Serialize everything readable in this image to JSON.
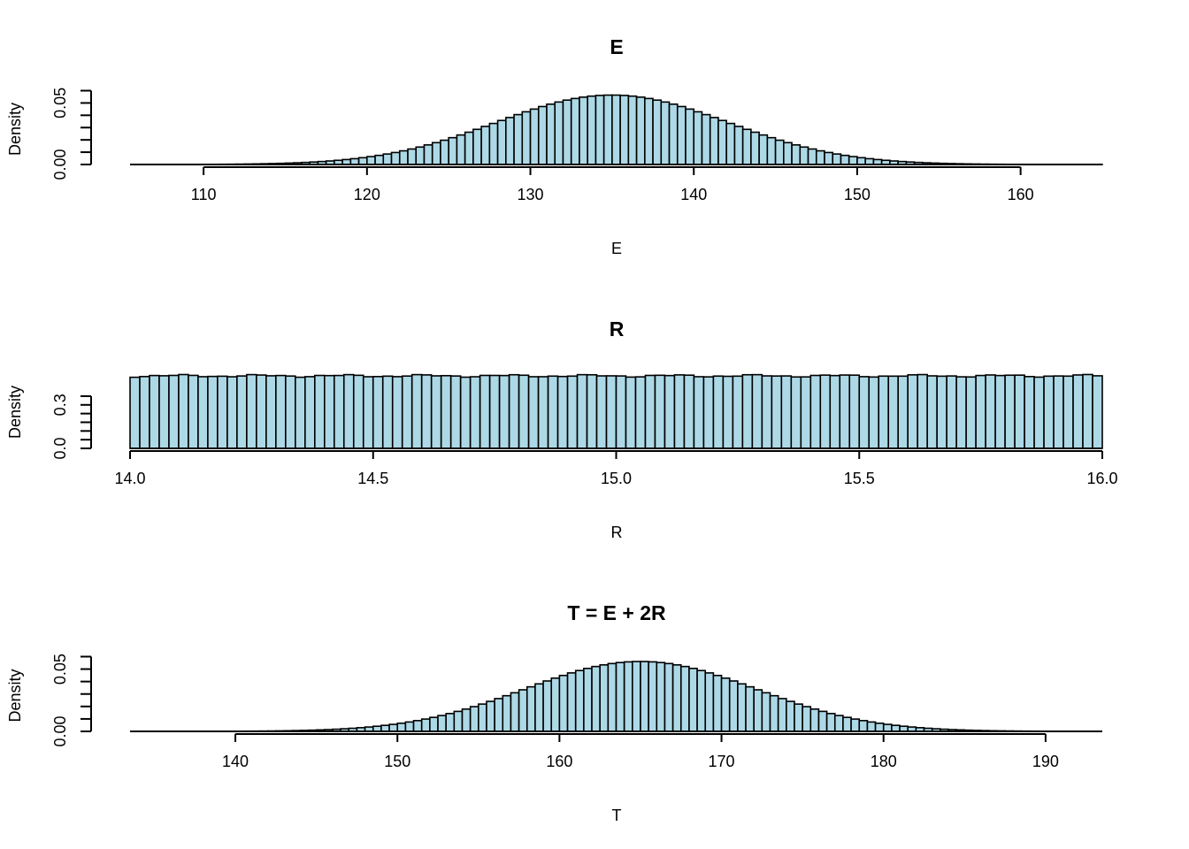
{
  "chart_data": [
    {
      "type": "bar",
      "title": "E",
      "xlabel": "E",
      "ylabel": "Density",
      "x_ticks": [
        "110",
        "120",
        "130",
        "140",
        "150",
        "160"
      ],
      "x_tick_values": [
        110,
        120,
        130,
        140,
        150,
        160
      ],
      "y_ticks": [
        "0.00",
        "0.05"
      ],
      "y_tick_values": [
        0,
        0.05
      ],
      "xlim": [
        105.5,
        165
      ],
      "ylim": [
        0,
        0.0575
      ],
      "bin_start": 106,
      "bin_width": 0.5,
      "bins": 118,
      "distribution": {
        "kind": "normal",
        "mean": 135,
        "sd": 7.07
      },
      "colors": {
        "fill": "#add8e6",
        "stroke": "#000000"
      }
    },
    {
      "type": "bar",
      "title": "R",
      "xlabel": "R",
      "ylabel": "Density",
      "x_ticks": [
        "14.0",
        "14.5",
        "15.0",
        "15.5",
        "16.0"
      ],
      "x_tick_values": [
        14.0,
        14.5,
        15.0,
        15.5,
        16.0
      ],
      "y_ticks": [
        "0.0",
        "0.3"
      ],
      "y_tick_values": [
        0,
        0.3
      ],
      "xlim": [
        14.0,
        16.0
      ],
      "ylim": [
        0,
        0.5
      ],
      "bin_start": 14.0,
      "bin_width": 0.02,
      "bins": 100,
      "distribution": {
        "kind": "uniform",
        "density": 0.5
      },
      "colors": {
        "fill": "#add8e6",
        "stroke": "#000000"
      }
    },
    {
      "type": "bar",
      "title": "T = E + 2R",
      "xlabel": "T",
      "ylabel": "Density",
      "x_ticks": [
        "140",
        "150",
        "160",
        "170",
        "180",
        "190"
      ],
      "x_tick_values": [
        140,
        150,
        160,
        170,
        180,
        190
      ],
      "y_ticks": [
        "0.00",
        "0.05"
      ],
      "y_tick_values": [
        0,
        0.05
      ],
      "xlim": [
        133.5,
        193.5
      ],
      "ylim": [
        0,
        0.0575
      ],
      "bin_start": 134,
      "bin_width": 0.5,
      "bins": 118,
      "distribution": {
        "kind": "normal",
        "mean": 165,
        "sd": 7.11
      },
      "colors": {
        "fill": "#add8e6",
        "stroke": "#000000"
      }
    }
  ]
}
